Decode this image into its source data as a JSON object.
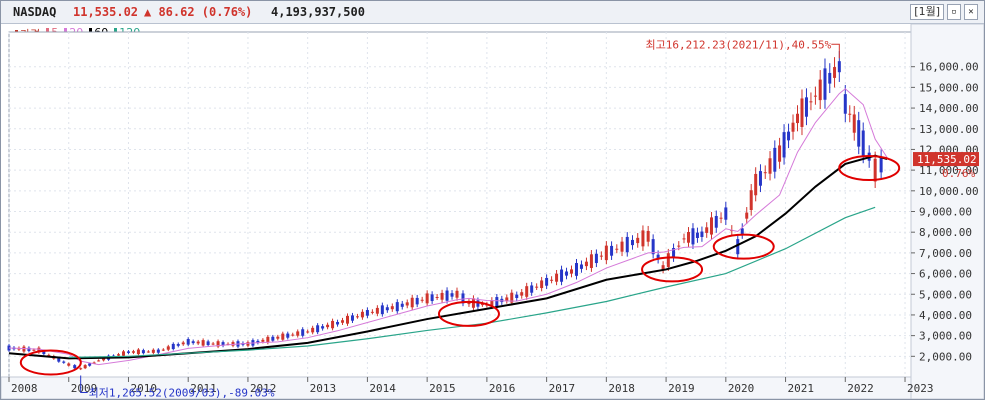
{
  "header": {
    "symbol": "NASDAQ",
    "price": "11,535.02",
    "change": "▲ 86.62 (0.76%)",
    "volume": "4,193,937,500",
    "period_label": "[1월]",
    "restore_icon": "restore-icon",
    "close_icon": "close-icon"
  },
  "legend": [
    {
      "label": "가격",
      "color": "#c0392b"
    },
    {
      "label": "5",
      "color": "#e06c80"
    },
    {
      "label": "20",
      "color": "#d57ad9"
    },
    {
      "label": "60",
      "color": "#000000"
    },
    {
      "label": "120",
      "color": "#2aa58a"
    }
  ],
  "chart_data": {
    "type": "line",
    "title": "NASDAQ",
    "xlabel": "",
    "ylabel": "",
    "x_ticks": [
      "2008",
      "2009",
      "2010",
      "2011",
      "2012",
      "2013",
      "2014",
      "2015",
      "2016",
      "2017",
      "2018",
      "2019",
      "2020",
      "2021",
      "2022",
      "2023"
    ],
    "y_ticks": [
      "2,000.00",
      "3,000.00",
      "4,000.00",
      "5,000.00",
      "6,000.00",
      "7,000.00",
      "8,000.00",
      "9,000.00",
      "10,000.00",
      "11,000.00",
      "12,000.00",
      "13,000.00",
      "14,000.00",
      "15,000.00",
      "16,000.00"
    ],
    "ylim": [
      1000,
      17000
    ],
    "xlim": [
      2008.0,
      2023.1
    ],
    "grid": true,
    "series": [
      {
        "name": "가격",
        "color": "#c0392b",
        "x": [
          2008.0,
          2008.5,
          2009.0,
          2009.2,
          2009.5,
          2010.0,
          2010.5,
          2011.0,
          2011.5,
          2012.0,
          2012.5,
          2013.0,
          2013.5,
          2014.0,
          2014.5,
          2015.0,
          2015.5,
          2015.7,
          2016.0,
          2016.5,
          2017.0,
          2017.5,
          2018.0,
          2018.7,
          2018.95,
          2019.3,
          2019.6,
          2020.0,
          2020.2,
          2020.5,
          2020.9,
          2021.2,
          2021.5,
          2021.9,
          2022.0,
          2022.3,
          2022.5,
          2022.7
        ],
        "values": [
          2400,
          2300,
          1600,
          1400,
          1800,
          2200,
          2250,
          2700,
          2600,
          2600,
          2900,
          3200,
          3600,
          4100,
          4400,
          4800,
          5000,
          4600,
          4500,
          4900,
          5600,
          6200,
          7000,
          7800,
          6300,
          7700,
          7900,
          8900,
          7300,
          10300,
          11800,
          13500,
          14600,
          16000,
          14200,
          12300,
          11000,
          11535
        ]
      },
      {
        "name": "60",
        "color": "#000000",
        "x": [
          2008.0,
          2009.0,
          2010.0,
          2011.0,
          2012.0,
          2013.0,
          2014.0,
          2015.0,
          2016.0,
          2017.0,
          2018.0,
          2019.0,
          2019.5,
          2020.0,
          2020.5,
          2021.0,
          2021.5,
          2022.0,
          2022.5,
          2022.7
        ],
        "values": [
          2150,
          1900,
          1950,
          2150,
          2350,
          2650,
          3200,
          3800,
          4300,
          4800,
          5700,
          6200,
          6600,
          7100,
          7800,
          8900,
          10200,
          11300,
          11700,
          11535
        ]
      },
      {
        "name": "120",
        "color": "#2aa58a",
        "x": [
          2009.0,
          2010.0,
          2011.0,
          2012.0,
          2013.0,
          2014.0,
          2015.0,
          2016.0,
          2017.0,
          2018.0,
          2019.0,
          2020.0,
          2021.0,
          2022.0,
          2022.5
        ],
        "values": [
          1950,
          2000,
          2150,
          2300,
          2500,
          2850,
          3250,
          3600,
          4100,
          4650,
          5350,
          6000,
          7200,
          8700,
          9200
        ]
      }
    ],
    "current_price_label": "11,535.02",
    "current_change_label": "0.76%",
    "annotations": [
      {
        "text": "최고16,212.23(2021/11),40.55%",
        "x": 2021.9,
        "y": 16212.23
      },
      {
        "text": "최저1,265.52(2009/03),-89.03%",
        "x": 2009.2,
        "y": 1265.52
      }
    ],
    "circled_regions": [
      {
        "x": 2008.7,
        "y": 1700
      },
      {
        "x": 2015.7,
        "y": 4050
      },
      {
        "x": 2019.1,
        "y": 6200
      },
      {
        "x": 2020.3,
        "y": 7300
      },
      {
        "x": 2022.4,
        "y": 11100
      }
    ]
  }
}
